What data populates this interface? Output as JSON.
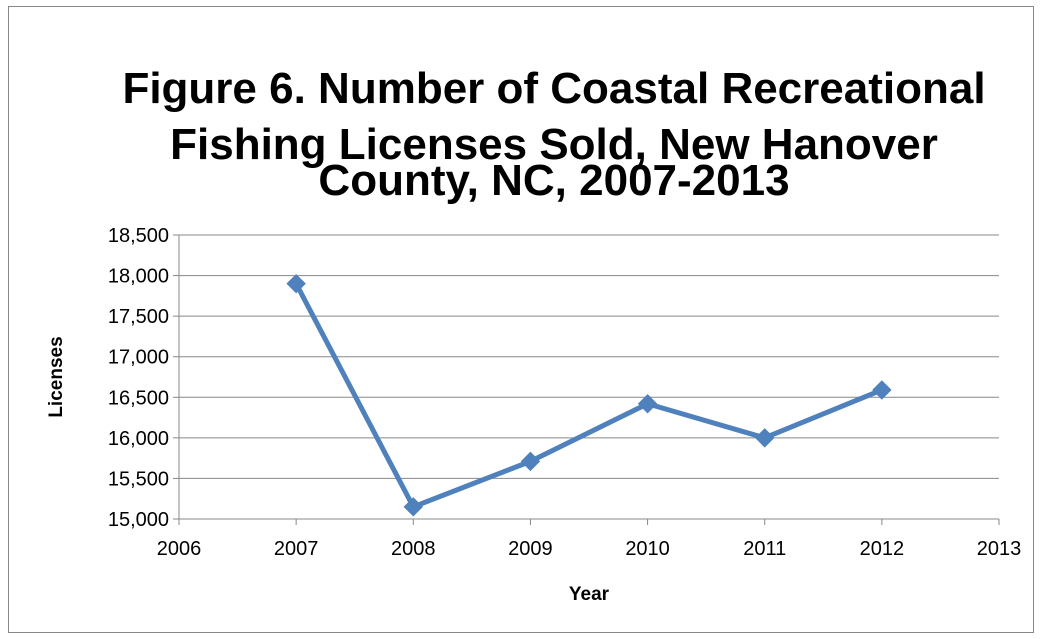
{
  "chart_data": {
    "type": "line",
    "title": [
      "Figure 6. Number of Coastal Recreational",
      "Fishing Licenses Sold, New Hanover",
      "County, NC, 2007-2013"
    ],
    "xlabel": "Year",
    "ylabel": "Licenses",
    "xlim": [
      2006,
      2013
    ],
    "ylim": [
      15000,
      18500
    ],
    "xticks": [
      2006,
      2007,
      2008,
      2009,
      2010,
      2011,
      2012,
      2013
    ],
    "yticks": [
      15000,
      15500,
      16000,
      16500,
      17000,
      17500,
      18000,
      18500
    ],
    "ytick_labels": [
      "15,000",
      "15,500",
      "16,000",
      "16,500",
      "17,000",
      "17,500",
      "18,000",
      "18,500"
    ],
    "grid": true,
    "series": [
      {
        "x": [
          2007,
          2008,
          2009,
          2010,
          2011,
          2012
        ],
        "y": [
          17900,
          15150,
          15710,
          16420,
          16000,
          16590
        ],
        "color": "#4f81bd",
        "marker": "diamond"
      }
    ]
  }
}
